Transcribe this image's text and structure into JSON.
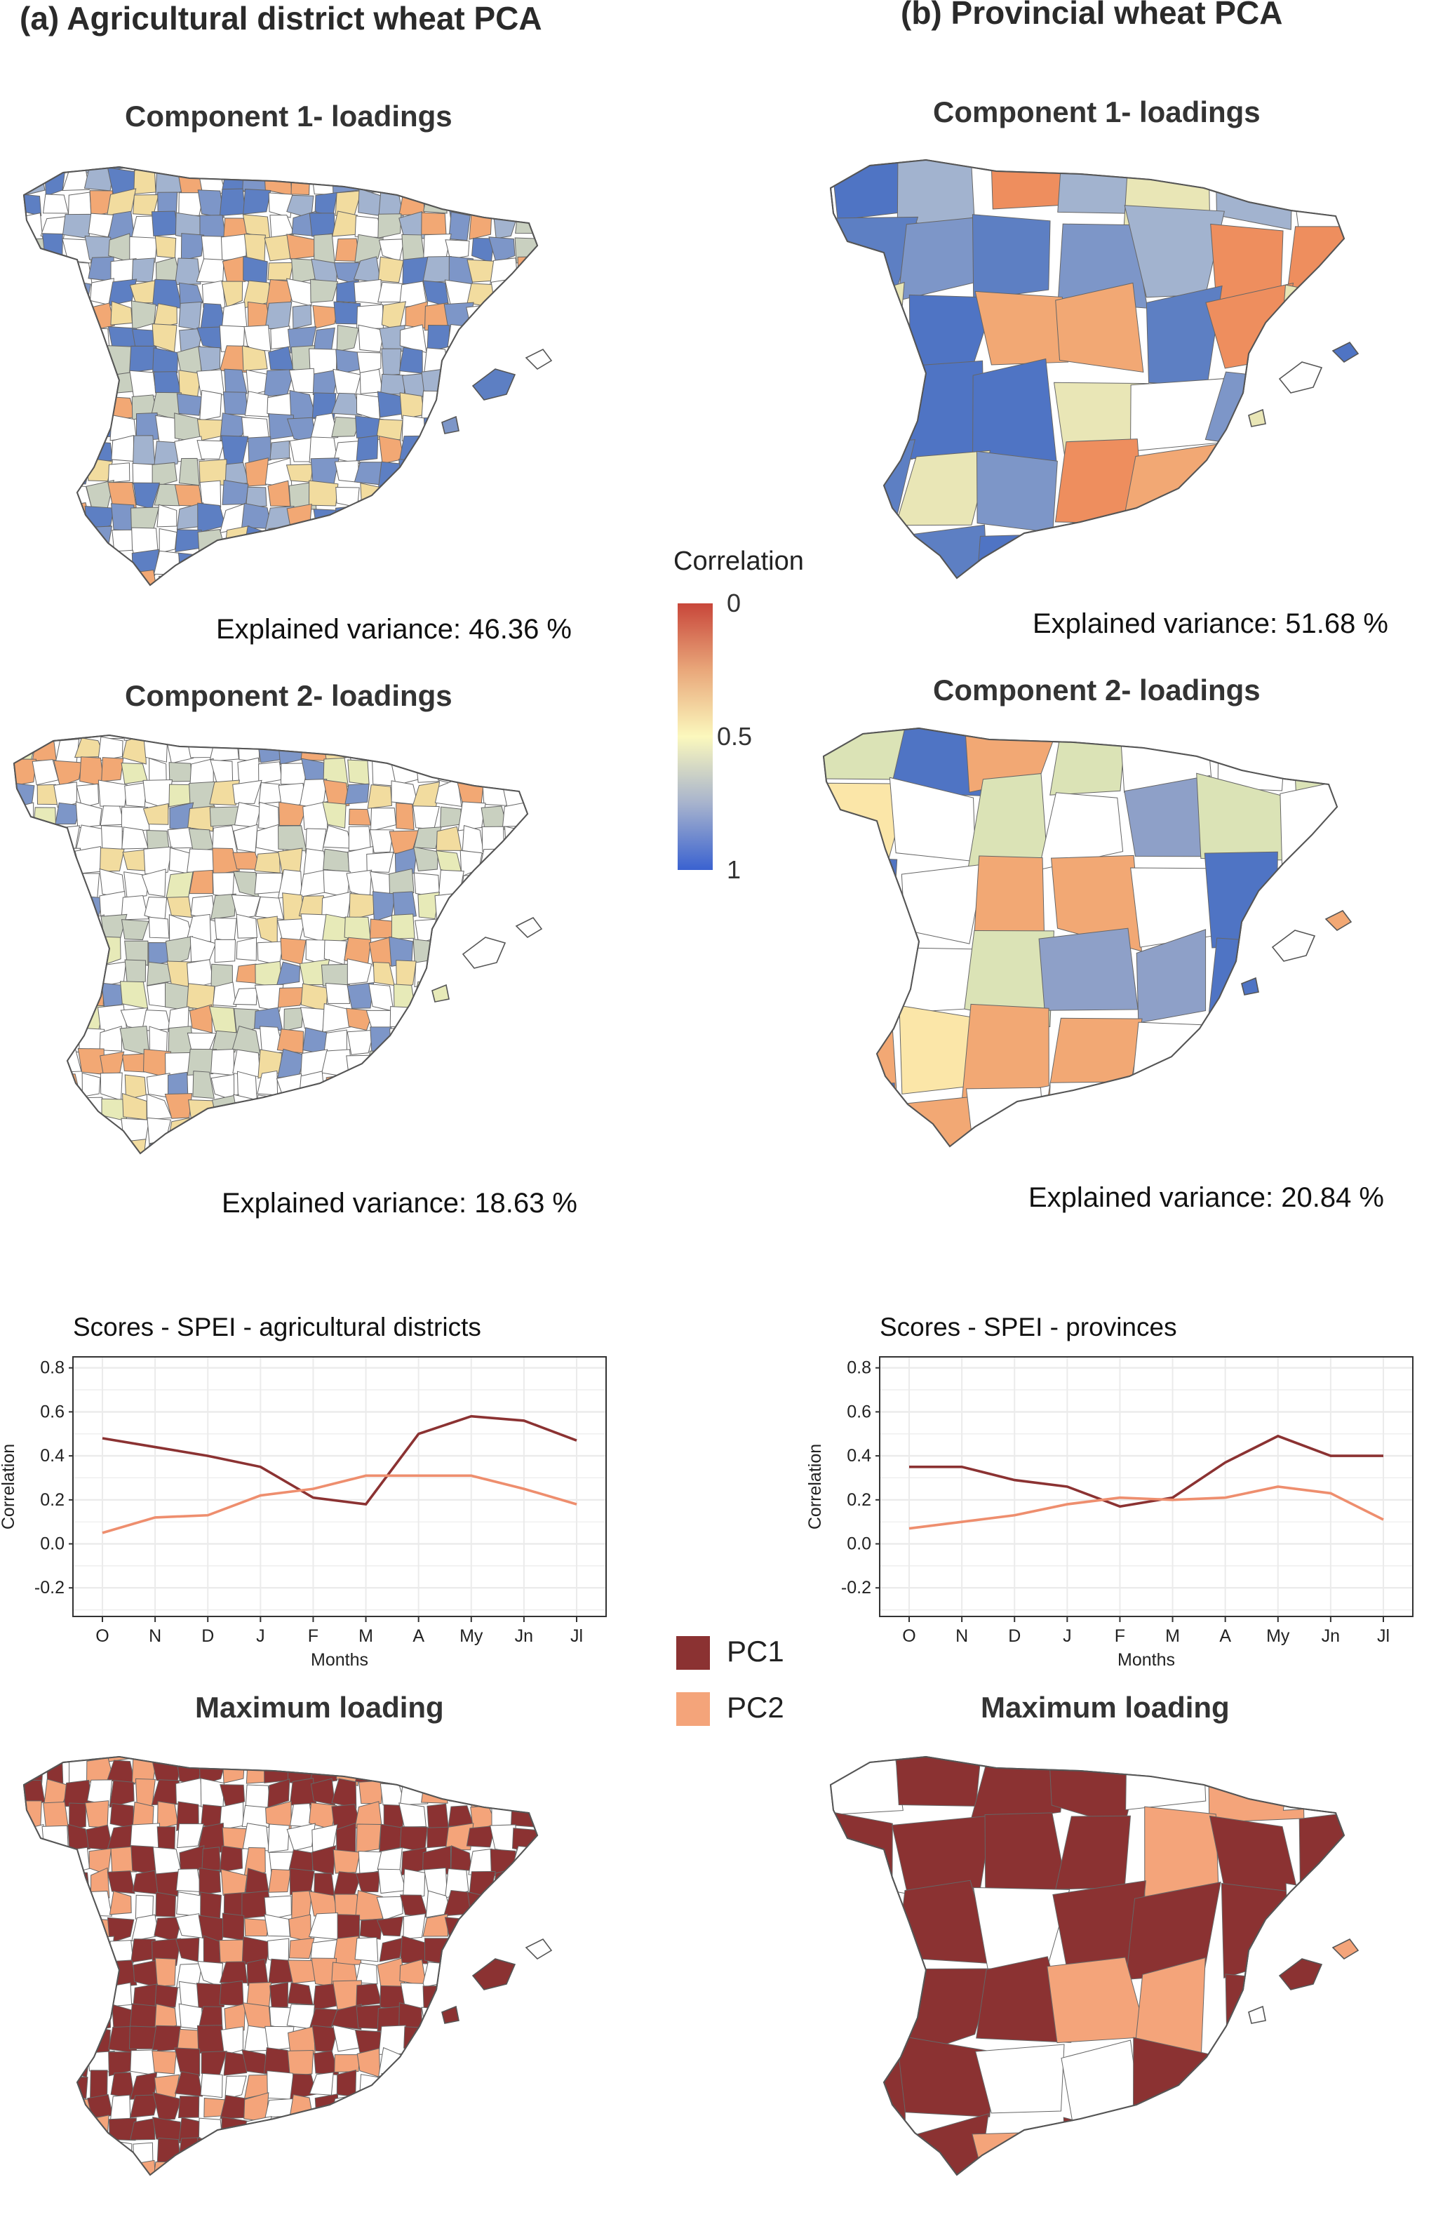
{
  "panels": {
    "a": {
      "title": "(a) Agricultural district wheat PCA",
      "component1_title": "Component 1- loadings",
      "component1_variance": "Explained variance: 46.36 %",
      "component2_title": "Component 2- loadings",
      "component2_variance": "Explained variance: 18.63 %",
      "max_title": "Maximum loading"
    },
    "b": {
      "title": "(b) Provincial wheat PCA",
      "component1_title": "Component 1- loadings",
      "component1_variance": "Explained variance: 51.68 %",
      "component2_title": "Component 2- loadings",
      "component2_variance": "Explained variance: 20.84  %",
      "max_title": "Maximum loading"
    }
  },
  "colorbar": {
    "title": "Correlation",
    "ticks": [
      "0",
      "0.5",
      "1"
    ],
    "colors": [
      "#c8463a",
      "#e9a77a",
      "#fbf8bd",
      "#a7b3cd",
      "#3a62d0"
    ]
  },
  "legend": {
    "items": [
      {
        "label": "PC1",
        "color": "#8b3232"
      },
      {
        "label": "PC2",
        "color": "#f4a47a"
      }
    ]
  },
  "chart_data": [
    {
      "type": "line",
      "title": "Scores - SPEI - agricultural districts",
      "xlabel": "Months",
      "ylabel": "Correlation",
      "categories": [
        "O",
        "N",
        "D",
        "J",
        "F",
        "M",
        "A",
        "My",
        "Jn",
        "Jl"
      ],
      "ylim": [
        -0.33,
        0.85
      ],
      "yticks": [
        "-0.2",
        "0.0",
        "0.2",
        "0.4",
        "0.6",
        "0.8"
      ],
      "grid": true,
      "series": [
        {
          "name": "PC1",
          "color": "#8b3232",
          "values": [
            0.48,
            0.44,
            0.4,
            0.35,
            0.21,
            0.18,
            0.5,
            0.58,
            0.56,
            0.47
          ]
        },
        {
          "name": "PC2",
          "color": "#ee8e6e",
          "values": [
            0.05,
            0.12,
            0.13,
            0.22,
            0.25,
            0.31,
            0.31,
            0.31,
            0.25,
            0.18
          ]
        }
      ]
    },
    {
      "type": "line",
      "title": "Scores - SPEI - provinces",
      "xlabel": "Months",
      "ylabel": "Correlation",
      "categories": [
        "O",
        "N",
        "D",
        "J",
        "F",
        "M",
        "A",
        "My",
        "Jn",
        "Jl"
      ],
      "ylim": [
        -0.33,
        0.85
      ],
      "yticks": [
        "-0.2",
        "0.0",
        "0.2",
        "0.4",
        "0.6",
        "0.8"
      ],
      "grid": true,
      "series": [
        {
          "name": "PC1",
          "color": "#8b3232",
          "values": [
            0.35,
            0.35,
            0.29,
            0.26,
            0.17,
            0.21,
            0.37,
            0.49,
            0.4,
            0.4
          ]
        },
        {
          "name": "PC2",
          "color": "#ee8e6e",
          "values": [
            0.07,
            0.1,
            0.13,
            0.18,
            0.21,
            0.2,
            0.21,
            0.26,
            0.23,
            0.11
          ]
        }
      ]
    }
  ]
}
